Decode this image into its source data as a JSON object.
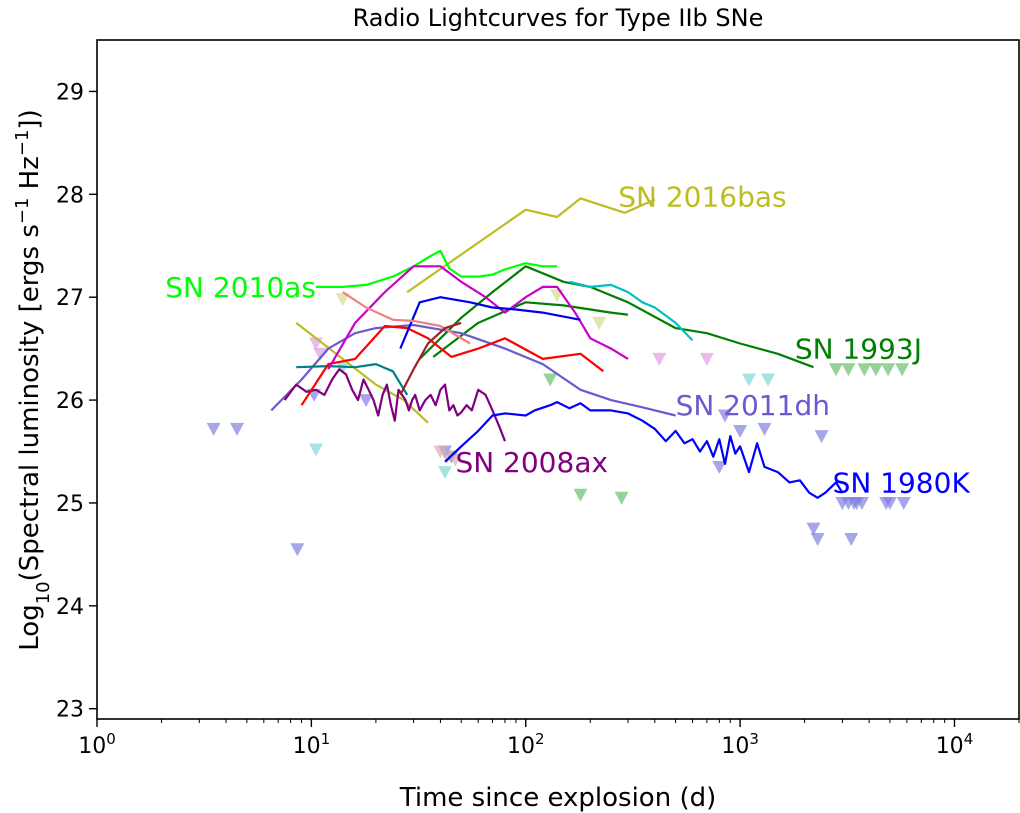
{
  "chart_data": {
    "type": "line",
    "title": "Radio Lightcurves for Type IIb SNe",
    "xlabel": "Time since explosion (d)",
    "ylabel_parts": {
      "prefix": "Log",
      "sub": "10",
      "main": "(Spectral luminosity [ergs s",
      "exp1": "−1",
      "mid": " Hz",
      "exp2": "−1",
      "suffix": "])"
    },
    "xscale": "log",
    "xlim": [
      1,
      20000
    ],
    "ylim": [
      22.9,
      29.5
    ],
    "x_ticks": [
      {
        "base": "10",
        "exp": "0",
        "value": 1
      },
      {
        "base": "10",
        "exp": "1",
        "value": 10
      },
      {
        "base": "10",
        "exp": "2",
        "value": 100
      },
      {
        "base": "10",
        "exp": "3",
        "value": 1000
      },
      {
        "base": "10",
        "exp": "4",
        "value": 10000
      }
    ],
    "y_ticks": [
      {
        "label": "23",
        "value": 23
      },
      {
        "label": "24",
        "value": 24
      },
      {
        "label": "25",
        "value": 25
      },
      {
        "label": "26",
        "value": 26
      },
      {
        "label": "27",
        "value": 27
      },
      {
        "label": "28",
        "value": 28
      },
      {
        "label": "29",
        "value": 29
      }
    ],
    "labels": [
      {
        "text": "SN 2016bas",
        "color": "#bcbd22",
        "x": 270,
        "y": 27.98,
        "anchor": "start"
      },
      {
        "text": "SN 2010as",
        "color": "#00ff00",
        "x": 10.5,
        "y": 27.1,
        "anchor": "end"
      },
      {
        "text": "SN 1993J",
        "color": "#008000",
        "x": 1800,
        "y": 26.5,
        "anchor": "start"
      },
      {
        "text": "SN 2011dh",
        "color": "#6a5acd",
        "x": 500,
        "y": 25.95,
        "anchor": "start"
      },
      {
        "text": "SN 2008ax",
        "color": "#800080",
        "x": 47,
        "y": 25.4,
        "anchor": "start"
      },
      {
        "text": "SN 1980K",
        "color": "#0000ff",
        "x": 2700,
        "y": 25.2,
        "anchor": "start"
      }
    ],
    "series": [
      {
        "name": "SN 2016bas",
        "color": "#bcbd22",
        "x": [
          28,
          100,
          140,
          180,
          290,
          400
        ],
        "y": [
          27.05,
          27.85,
          27.78,
          27.96,
          27.82,
          27.95
        ]
      },
      {
        "name": "SN 2016bas (early)",
        "color": "#bcbd22",
        "x": [
          8.5,
          14,
          20,
          27,
          35
        ],
        "y": [
          26.75,
          26.4,
          26.15,
          26.0,
          25.78
        ]
      },
      {
        "name": "SN 2010as",
        "color": "#00ff00",
        "x": [
          10.5,
          14,
          18,
          24,
          30,
          36,
          40,
          44,
          50,
          60,
          70,
          80,
          100,
          120,
          140
        ],
        "y": [
          27.1,
          27.1,
          27.12,
          27.2,
          27.3,
          27.4,
          27.45,
          27.28,
          27.2,
          27.2,
          27.22,
          27.27,
          27.33,
          27.3,
          27.3
        ]
      },
      {
        "name": "SN 1993J",
        "color": "#008000",
        "x": [
          32,
          50,
          70,
          100,
          150,
          200,
          300,
          500,
          700,
          1000,
          1500,
          2200
        ],
        "y": [
          26.4,
          26.8,
          27.05,
          27.3,
          27.15,
          27.1,
          26.95,
          26.7,
          26.65,
          26.55,
          26.45,
          26.32
        ]
      },
      {
        "name": "SN 1993J (low)",
        "color": "#008000",
        "x": [
          37,
          60,
          100,
          150,
          250,
          300
        ],
        "y": [
          26.42,
          26.75,
          26.95,
          26.92,
          26.85,
          26.83
        ]
      },
      {
        "name": "SN 2011dh",
        "color": "#6a5acd",
        "x": [
          6.5,
          9,
          12,
          16,
          20,
          30,
          50,
          80,
          120,
          180,
          250,
          350,
          500
        ],
        "y": [
          25.9,
          26.2,
          26.5,
          26.65,
          26.7,
          26.73,
          26.65,
          26.5,
          26.35,
          26.1,
          26.0,
          25.93,
          25.85
        ]
      },
      {
        "name": "SN 2008ax",
        "color": "#800080",
        "x": [
          7.5,
          8.5,
          9.5,
          10.5,
          11.5,
          12.5,
          13.5,
          14.5,
          15.5,
          16.5,
          17.5,
          18.5,
          19.5,
          20.5,
          21.5,
          22.5,
          23.5,
          24.5,
          25.5,
          26.5,
          27.5,
          28.5,
          29.5,
          30.5,
          32,
          34,
          36,
          38,
          40,
          42,
          44,
          46,
          48,
          50,
          53,
          56,
          60,
          65,
          70,
          75,
          80
        ],
        "y": [
          26.0,
          26.15,
          26.08,
          26.1,
          26.05,
          26.2,
          26.3,
          26.25,
          26.1,
          26.0,
          26.2,
          26.1,
          26.0,
          25.85,
          26.05,
          26.15,
          25.95,
          25.8,
          26.1,
          26.05,
          26.0,
          25.9,
          26.0,
          26.05,
          25.9,
          26.0,
          26.05,
          25.95,
          26.1,
          26.15,
          25.9,
          25.95,
          25.85,
          25.88,
          25.95,
          25.9,
          26.1,
          26.05,
          25.9,
          25.75,
          25.6
        ]
      },
      {
        "name": "SN 1980K",
        "color": "#0000ff",
        "x": [
          42,
          50,
          60,
          70,
          80,
          100,
          110,
          130,
          140,
          160,
          180,
          200,
          250,
          300,
          350,
          400,
          450,
          500,
          550,
          600,
          650,
          700,
          750,
          800,
          850,
          900,
          950,
          1000,
          1100,
          1200,
          1300,
          1500,
          1700,
          1900,
          2100,
          2300,
          2500,
          2800,
          3000
        ],
        "y": [
          25.4,
          25.55,
          25.7,
          25.85,
          25.87,
          25.85,
          25.9,
          25.95,
          25.98,
          25.92,
          25.97,
          25.9,
          25.9,
          25.87,
          25.8,
          25.72,
          25.6,
          25.7,
          25.58,
          25.62,
          25.5,
          25.6,
          25.45,
          25.62,
          25.38,
          25.65,
          25.48,
          25.55,
          25.3,
          25.58,
          25.35,
          25.3,
          25.2,
          25.22,
          25.1,
          25.05,
          25.1,
          25.2,
          25.1
        ]
      },
      {
        "name": "teal",
        "color": "#008080",
        "x": [
          8.5,
          12,
          16,
          20,
          24,
          28
        ],
        "y": [
          26.32,
          26.33,
          26.32,
          26.35,
          26.28,
          26.05
        ]
      },
      {
        "name": "red",
        "color": "#ff0000",
        "x": [
          9,
          12,
          16,
          22,
          28,
          35,
          45,
          60,
          80,
          120,
          180,
          230
        ],
        "y": [
          25.95,
          26.35,
          26.4,
          26.72,
          26.7,
          26.6,
          26.42,
          26.5,
          26.6,
          26.4,
          26.45,
          26.28
        ]
      },
      {
        "name": "magenta",
        "color": "#cc00cc",
        "x": [
          12,
          16,
          22,
          30,
          40,
          50,
          65,
          80,
          100,
          120,
          140,
          170,
          200,
          250,
          300
        ],
        "y": [
          26.3,
          26.75,
          27.05,
          27.3,
          27.3,
          27.15,
          27.0,
          26.85,
          27.0,
          27.1,
          27.1,
          26.85,
          26.6,
          26.5,
          26.4
        ]
      },
      {
        "name": "cyan",
        "color": "#00bfbf",
        "x": [
          160,
          200,
          250,
          300,
          350,
          400,
          500,
          600
        ],
        "y": [
          27.15,
          27.1,
          27.12,
          27.05,
          26.95,
          26.9,
          26.75,
          26.58
        ]
      },
      {
        "name": "blue2",
        "color": "#0000ee",
        "x": [
          26,
          32,
          40,
          55,
          70,
          90,
          120,
          180
        ],
        "y": [
          26.5,
          26.95,
          27.0,
          26.95,
          26.9,
          26.88,
          26.85,
          26.78
        ]
      },
      {
        "name": "salmon",
        "color": "#f08080",
        "x": [
          14,
          18,
          24,
          30,
          40,
          55
        ],
        "y": [
          27.05,
          26.9,
          26.78,
          26.77,
          26.72,
          26.55
        ]
      },
      {
        "name": "darkred",
        "color": "#a0202a",
        "x": [
          26,
          30,
          35,
          42,
          50
        ],
        "y": [
          26.05,
          26.3,
          26.55,
          26.7,
          26.75
        ]
      }
    ],
    "upper_limits": [
      {
        "color": "#8080e0",
        "points": [
          [
            3.5,
            25.72
          ],
          [
            4.5,
            25.72
          ],
          [
            8.6,
            24.55
          ],
          [
            10.3,
            26.05
          ],
          [
            18,
            26.0
          ],
          [
            42,
            25.5
          ],
          [
            45,
            25.45
          ],
          [
            850,
            25.85
          ],
          [
            1000,
            25.7
          ],
          [
            1300,
            25.72
          ],
          [
            800,
            25.35
          ],
          [
            2200,
            24.75
          ],
          [
            2300,
            24.65
          ],
          [
            2400,
            25.65
          ],
          [
            3000,
            25.0
          ],
          [
            3200,
            25.0
          ],
          [
            3300,
            24.65
          ],
          [
            3400,
            25.0
          ],
          [
            3500,
            25.0
          ],
          [
            3700,
            25.0
          ],
          [
            4800,
            25.0
          ],
          [
            5000,
            25.0
          ],
          [
            5800,
            25.0
          ]
        ]
      },
      {
        "color": "#6bbf6b",
        "points": [
          [
            130,
            26.2
          ],
          [
            180,
            25.08
          ],
          [
            280,
            25.05
          ],
          [
            2800,
            26.3
          ],
          [
            3200,
            26.3
          ],
          [
            3800,
            26.3
          ],
          [
            4300,
            26.3
          ],
          [
            4900,
            26.3
          ],
          [
            5700,
            26.3
          ]
        ]
      },
      {
        "color": "#e0a0e0",
        "points": [
          [
            10.5,
            26.55
          ],
          [
            11,
            26.45
          ],
          [
            420,
            26.4
          ],
          [
            700,
            26.4
          ]
        ]
      },
      {
        "color": "#80d8d8",
        "points": [
          [
            10.5,
            25.52
          ],
          [
            14,
            26.32
          ],
          [
            42,
            25.3
          ],
          [
            1100,
            26.2
          ],
          [
            1350,
            26.2
          ]
        ]
      },
      {
        "color": "#d8b0b0",
        "points": [
          [
            40,
            25.5
          ],
          [
            43,
            25.45
          ],
          [
            47,
            25.42
          ]
        ]
      },
      {
        "color": "#d8d890",
        "points": [
          [
            14,
            26.98
          ],
          [
            140,
            27.02
          ],
          [
            220,
            26.75
          ]
        ]
      }
    ]
  }
}
